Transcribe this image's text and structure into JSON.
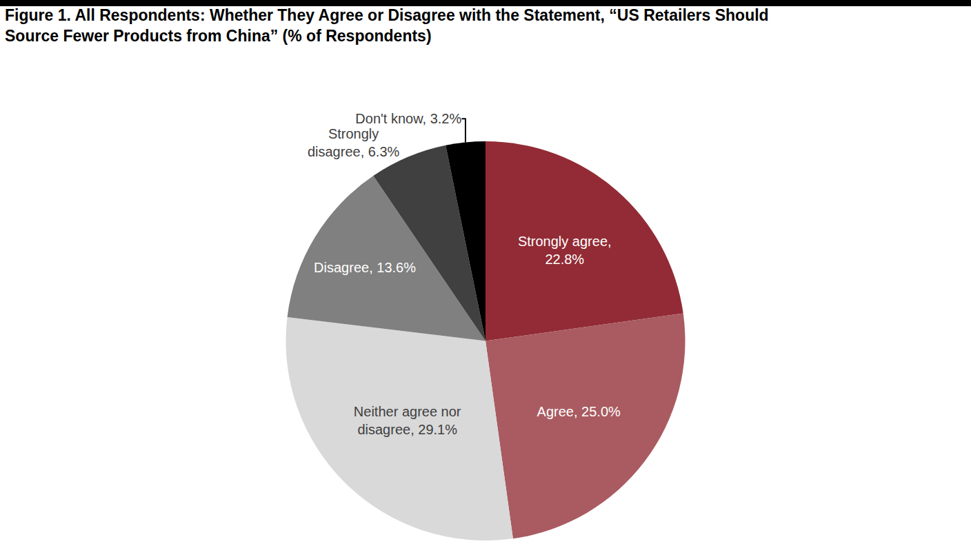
{
  "chart_data": {
    "type": "pie",
    "title": "Figure 1. All Respondents: Whether They Agree or Disagree with the Statement, “US Retailers Should Source Fewer Products from China” (% of Respondents)",
    "categories": [
      "Strongly agree",
      "Agree",
      "Neither agree nor disagree",
      "Disagree",
      "Strongly disagree",
      "Don't know"
    ],
    "values": [
      22.8,
      25.0,
      29.1,
      13.6,
      6.3,
      3.2
    ],
    "value_labels": [
      "Strongly agree, 22.8%",
      "Agree, 25.0%",
      "Neither agree nor disagree, 29.1%",
      "Disagree, 13.6%",
      "Strongly disagree, 6.3%",
      "Don't know, 3.2%"
    ],
    "colors": [
      "#922b35",
      "#a95b61",
      "#d9d9d9",
      "#808080",
      "#404040",
      "#000000"
    ],
    "data_labels": true
  }
}
